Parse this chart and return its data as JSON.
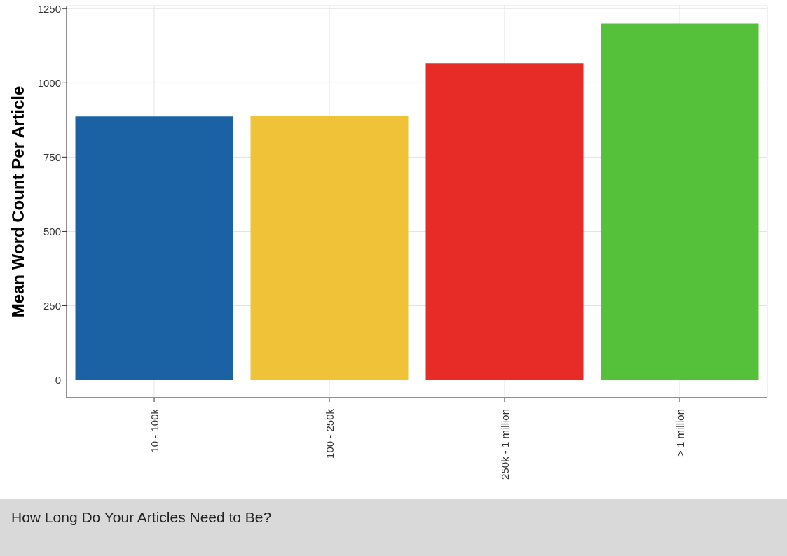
{
  "chart_data": {
    "type": "bar",
    "ylabel": "Mean Word Count Per Article",
    "categories": [
      "10 - 100k",
      "100 - 250k",
      "250k - 1 million",
      "> 1 million"
    ],
    "values": [
      887,
      889,
      1066,
      1200
    ],
    "colors": [
      "#1b62a5",
      "#f0c237",
      "#e72b27",
      "#55c13b"
    ],
    "ylim": [
      -60,
      1260
    ],
    "yticks": [
      0,
      250,
      500,
      750,
      1000,
      1250
    ],
    "grid": true,
    "annotations": [
      "How Long Do Your Articles Need to Be?"
    ]
  }
}
